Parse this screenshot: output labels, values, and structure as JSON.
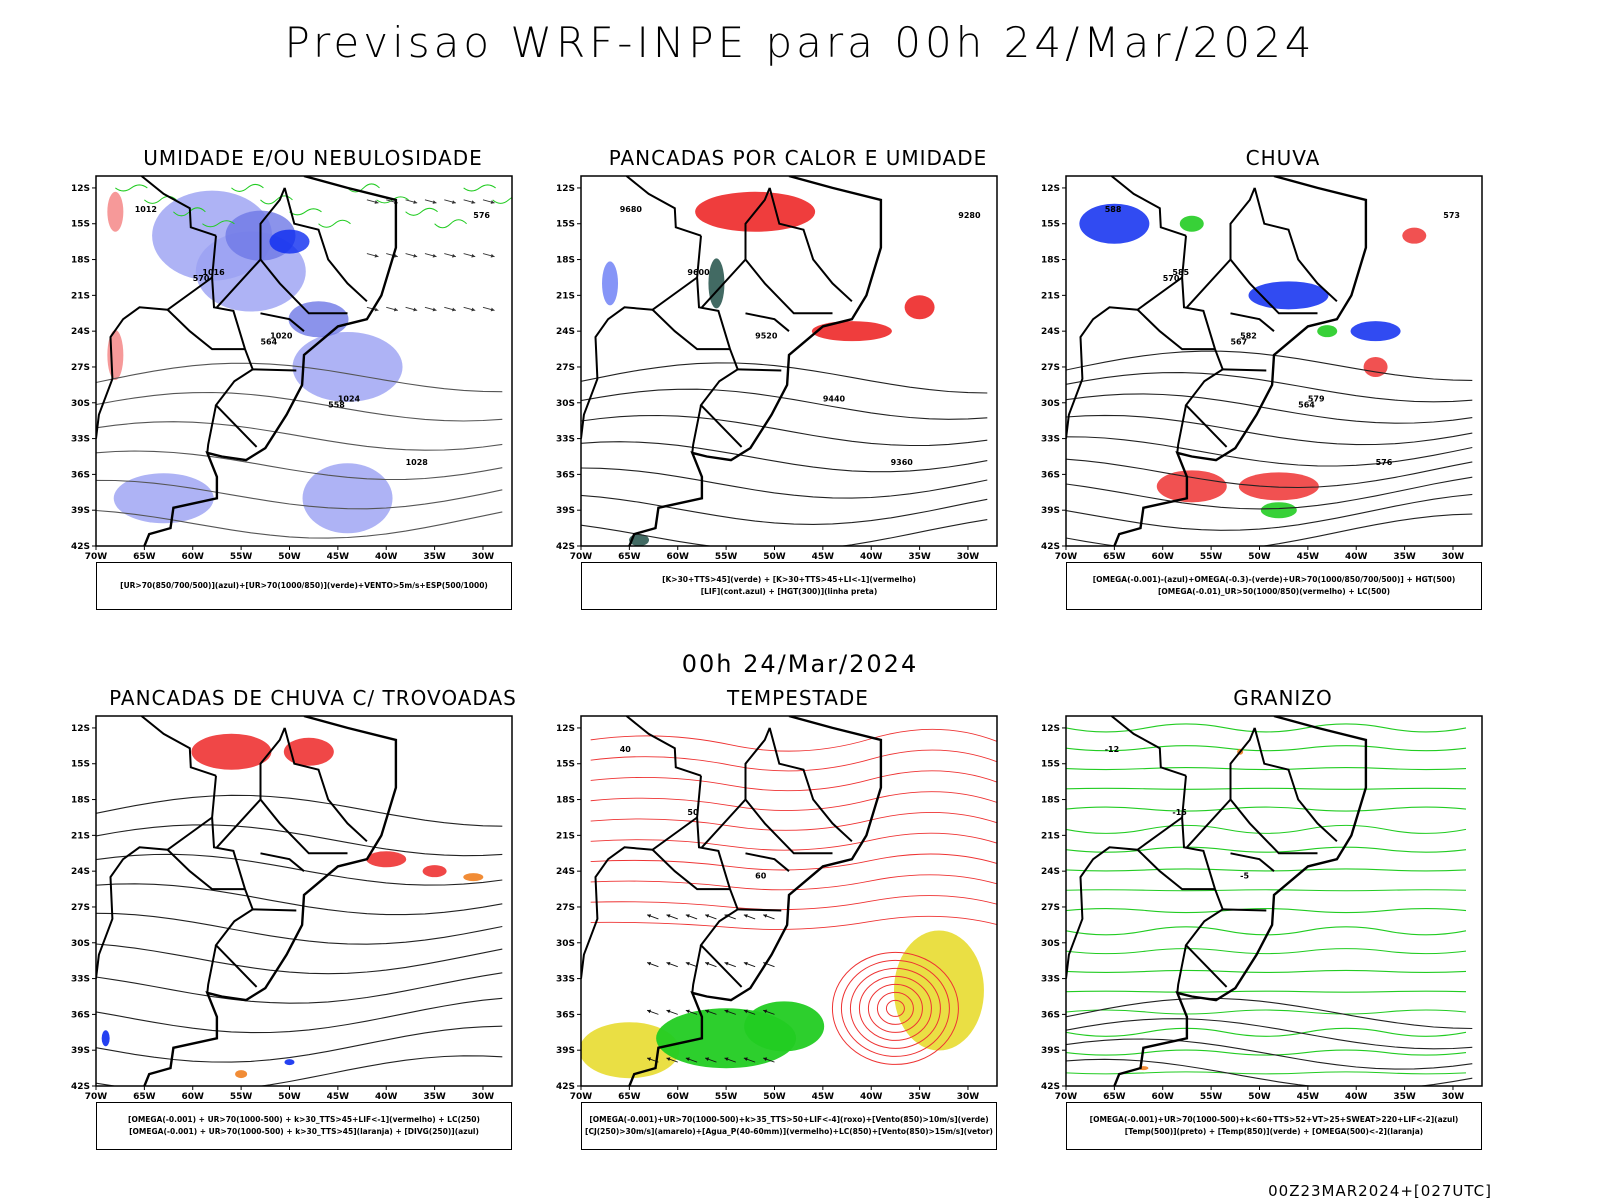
{
  "header": {
    "title": "Previsao WRF-INPE  para 00h 24/Mar/2024",
    "subtitle": "00h 24/Mar/2024",
    "footer": "00Z23MAR2024+[027UTC]"
  },
  "axes": {
    "lat_labels": [
      "12S",
      "15S",
      "18S",
      "21S",
      "24S",
      "27S",
      "30S",
      "33S",
      "36S",
      "39S",
      "42S"
    ],
    "lon_labels": [
      "70W",
      "65W",
      "60W",
      "55W",
      "50W",
      "45W",
      "40W",
      "35W",
      "30W"
    ]
  },
  "colors": {
    "coast": "#000000",
    "blue": "#0d2cf0",
    "lightblue": "#9aa0f3",
    "midblue": "#6e78e6",
    "green": "#22cc22",
    "red": "#ee3333",
    "darkteal": "#2e5a52",
    "orange": "#f08020",
    "yellow": "#e8dc30"
  },
  "panels": [
    {
      "id": "umidade",
      "title": "UMIDADE E/OU NEBULOSIDADE",
      "legend": [
        "[UR>70(850/700/500)](azul)+[UR>70(1000/850)](verde)+VENTO>5m/s+ESP(500/1000)"
      ],
      "contour_labels": [
        "1012",
        "1016",
        "1020",
        "1024",
        "1028",
        "576",
        "570",
        "564",
        "558"
      ]
    },
    {
      "id": "pancadas-calor",
      "title": "PANCADAS POR CALOR E UMIDADE",
      "legend": [
        "[K>30+TTS>45](verde) + [K>30+TTS>45+LI<-1](vermelho)",
        "[LIF](cont.azul) + [HGT(300)](linha preta)"
      ],
      "contour_labels": [
        "9680",
        "9600",
        "9520",
        "9440",
        "9360",
        "9280"
      ]
    },
    {
      "id": "chuva",
      "title": "CHUVA",
      "legend": [
        "[OMEGA(-0.001)-(azul)+OMEGA(-0.3)-(verde)+UR>70(1000/850/700/500)] + HGT(500)",
        "[OMEGA(-0.01)_UR>50(1000/850)(vermelho) + LC(500)"
      ],
      "contour_labels": [
        "588",
        "585",
        "582",
        "579",
        "576",
        "573",
        "570",
        "567",
        "564"
      ]
    },
    {
      "id": "pancadas-trovoadas",
      "title": "PANCADAS DE CHUVA C/ TROVOADAS",
      "legend": [
        "[OMEGA(-0.001) + UR>70(1000-500) + k>30_TTS>45+LIF<-1](vermelho) + LC(250)",
        "[OMEGA(-0.001) + UR>70(1000-500) + k>30_TTS>45](laranja) + [DIVG(250)](azul)"
      ],
      "contour_labels": []
    },
    {
      "id": "tempestade",
      "title": "TEMPESTADE",
      "legend": [
        "[OMEGA(-0.001)+UR>70(1000-500)+k>35_TTS>50+LIF<-4](roxo)+[Vento(850)>10m/s](verde)",
        "[CJ(250)>30m/s](amarelo)+[Agua_P(40-60mm)](vermelho)+LC(850)+[Vento(850)>15m/s](vetor)"
      ],
      "contour_labels": [
        "40",
        "50",
        "60"
      ]
    },
    {
      "id": "granizo",
      "title": "GRANIZO",
      "legend": [
        "[OMEGA(-0.001)+UR>70(1000-500)+k<60+TTS>52+VT>25+SWEAT>220+LIF<-2](azul)",
        "[Temp(500)](preto) + [Temp(850)](verde) + [OMEGA(500)<-2](laranja)"
      ],
      "contour_labels": [
        "-12",
        "-15",
        "-5"
      ]
    }
  ]
}
